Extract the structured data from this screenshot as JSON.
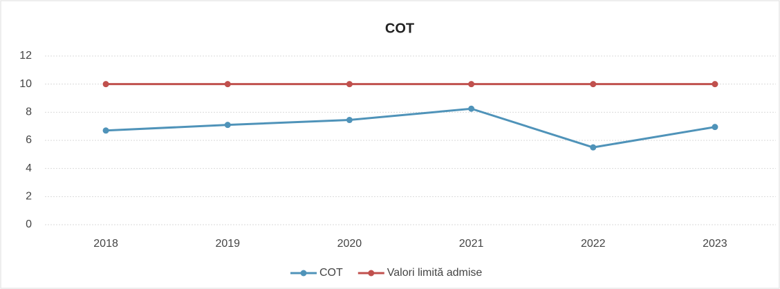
{
  "chart_data": {
    "type": "line",
    "title": "COT",
    "categories": [
      "2018",
      "2019",
      "2020",
      "2021",
      "2022",
      "2023"
    ],
    "series": [
      {
        "name": "COT",
        "color": "#4f93b9",
        "values": [
          6.7,
          7.1,
          7.45,
          8.25,
          5.5,
          6.95
        ]
      },
      {
        "name": "Valori limită admise",
        "color": "#c0504d",
        "values": [
          10,
          10,
          10,
          10,
          10,
          10
        ]
      }
    ],
    "ylim": [
      0,
      12
    ],
    "yticks": [
      0,
      2,
      4,
      6,
      8,
      10,
      12
    ],
    "grid": true,
    "legend": "bottom"
  }
}
